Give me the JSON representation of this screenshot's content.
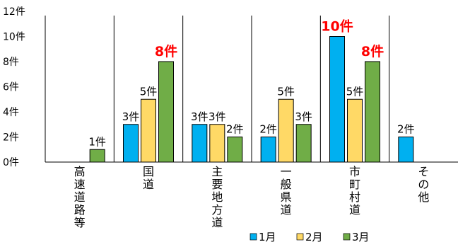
{
  "chart_data": {
    "type": "bar",
    "categories": [
      "高速道路等",
      "国道",
      "主要地方道",
      "一般県道",
      "市町村道",
      "その他"
    ],
    "series": [
      {
        "name": "1月",
        "color": "#00b0f0",
        "values": [
          0,
          3,
          3,
          2,
          10,
          2
        ],
        "labels": [
          "",
          "3件",
          "3件",
          "2件",
          "10件",
          "2件"
        ]
      },
      {
        "name": "2月",
        "color": "#ffd966",
        "values": [
          0,
          5,
          3,
          5,
          5,
          0
        ],
        "labels": [
          "",
          "5件",
          "3件",
          "5件",
          "5件",
          ""
        ]
      },
      {
        "name": "3月",
        "color": "#70ad47",
        "values": [
          1,
          8,
          2,
          3,
          8,
          0
        ],
        "labels": [
          "1件",
          "8件",
          "2件",
          "3件",
          "8件",
          ""
        ]
      }
    ],
    "highlight_color": "#ff0000",
    "highlighted_labels": [
      {
        "series": 2,
        "category": 1
      },
      {
        "series": 0,
        "category": 4
      },
      {
        "series": 2,
        "category": 4
      }
    ],
    "y_ticks": [
      {
        "value": 0,
        "label": "0件"
      },
      {
        "value": 2,
        "label": "2件"
      },
      {
        "value": 4,
        "label": "4件"
      },
      {
        "value": 6,
        "label": "6件"
      },
      {
        "value": 8,
        "label": "8件"
      },
      {
        "value": 10,
        "label": "10件"
      },
      {
        "value": 12,
        "label": "12件"
      }
    ],
    "ylim": [
      0,
      12
    ],
    "category_separators": true,
    "legend_position": "bottom-right",
    "title": "",
    "xlabel": "",
    "ylabel": ""
  }
}
